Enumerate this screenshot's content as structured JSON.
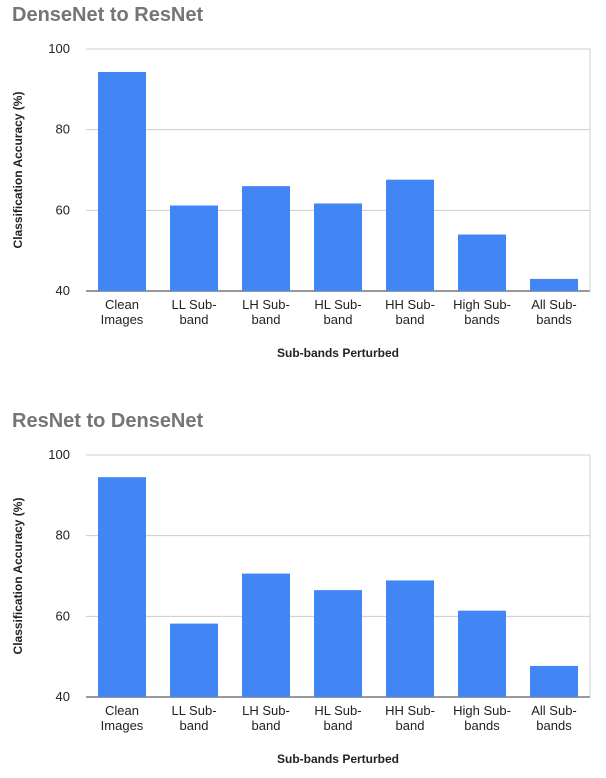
{
  "chart_data": [
    {
      "type": "bar",
      "title": "DenseNet to ResNet",
      "xlabel": "Sub-bands Perturbed",
      "ylabel": "Classification Accuracy (%)",
      "ylim": [
        40,
        100
      ],
      "yticks": [
        40,
        60,
        80,
        100
      ],
      "grid": true,
      "color": "#4285F4",
      "categories": [
        [
          "Clean",
          "Images"
        ],
        [
          "LL Sub-",
          "band"
        ],
        [
          "LH Sub-",
          "band"
        ],
        [
          "HL Sub-",
          "band"
        ],
        [
          "HH Sub-",
          "band"
        ],
        [
          "High Sub-",
          "bands"
        ],
        [
          "All Sub-",
          "bands"
        ]
      ],
      "values": [
        94.3,
        61.2,
        66.0,
        61.7,
        67.6,
        54.0,
        43.0
      ]
    },
    {
      "type": "bar",
      "title": "ResNet to DenseNet",
      "xlabel": "Sub-bands Perturbed",
      "ylabel": "Classification Accuracy (%)",
      "ylim": [
        40,
        100
      ],
      "yticks": [
        40,
        60,
        80,
        100
      ],
      "grid": true,
      "color": "#4285F4",
      "categories": [
        [
          "Clean",
          "Images"
        ],
        [
          "LL Sub-",
          "band"
        ],
        [
          "LH Sub-",
          "band"
        ],
        [
          "HL Sub-",
          "band"
        ],
        [
          "HH Sub-",
          "band"
        ],
        [
          "High Sub-",
          "bands"
        ],
        [
          "All Sub-",
          "bands"
        ]
      ],
      "values": [
        94.5,
        58.2,
        70.6,
        66.5,
        68.9,
        61.4,
        47.7
      ]
    }
  ]
}
